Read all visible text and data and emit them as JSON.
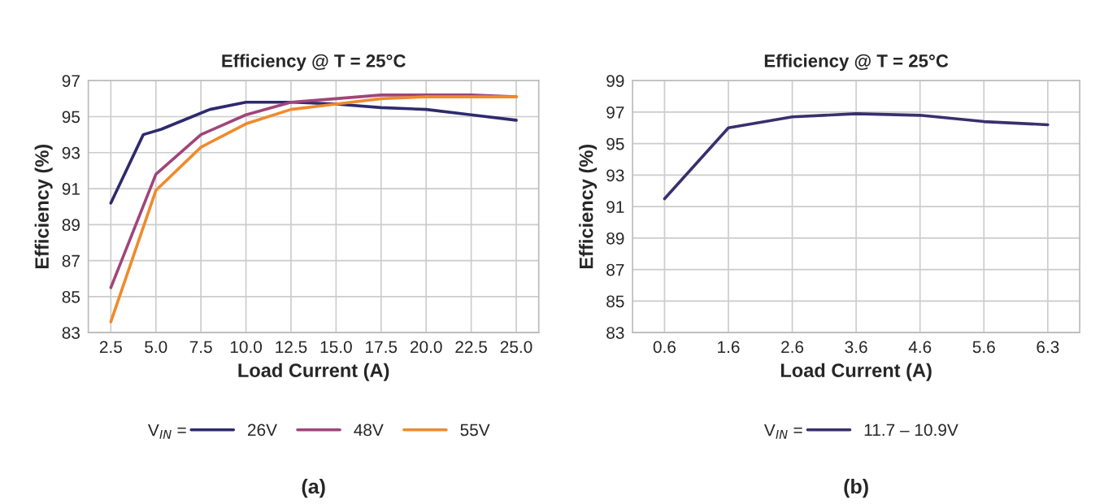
{
  "chart_data": [
    {
      "type": "line",
      "title": "Efficiency @ T = 25°C",
      "xlabel": "Load Current (A)",
      "ylabel": "Efficiency (%)",
      "legend_title": "V$_{IN}$ =",
      "xlim": [
        1.25,
        26.25
      ],
      "xticks": [
        {
          "value": 2.5,
          "label": "2.5"
        },
        {
          "value": 5,
          "label": "5.0"
        },
        {
          "value": 7.5,
          "label": "7.5"
        },
        {
          "value": 10,
          "label": "10.0"
        },
        {
          "value": 12.5,
          "label": "12.5"
        },
        {
          "value": 15,
          "label": "15.0"
        },
        {
          "value": 17.5,
          "label": "17.5"
        },
        {
          "value": 20,
          "label": "20.0"
        },
        {
          "value": 22.5,
          "label": "22.5"
        },
        {
          "value": 25,
          "label": "25.0"
        }
      ],
      "ylim": [
        83,
        97
      ],
      "yticks": [
        83,
        85,
        87,
        89,
        91,
        93,
        95,
        97
      ],
      "grid": true,
      "legend": "bottom",
      "marker": "none",
      "line_style": "solid",
      "series": [
        {
          "name": "26V",
          "color": "#2e2a6e",
          "x": [
            2.5,
            4.3,
            5.3,
            8.0,
            10,
            12.6,
            15,
            17.5,
            20,
            22.5,
            25
          ],
          "values": [
            90.2,
            94.0,
            94.3,
            95.4,
            95.8,
            95.8,
            95.7,
            95.5,
            95.4,
            95.1,
            94.8
          ]
        },
        {
          "name": "48V",
          "color": "#a0457a",
          "x": [
            2.5,
            5,
            7.5,
            10,
            12.5,
            15,
            17.5,
            20,
            22.5,
            25
          ],
          "values": [
            85.5,
            91.8,
            94.0,
            95.1,
            95.8,
            96.0,
            96.2,
            96.2,
            96.2,
            96.1
          ]
        },
        {
          "name": "55V",
          "color": "#f08a2c",
          "x": [
            2.5,
            5,
            7.5,
            10,
            12.5,
            15,
            17.5,
            20,
            22.5,
            25
          ],
          "values": [
            83.6,
            90.9,
            93.3,
            94.6,
            95.4,
            95.7,
            96.0,
            96.1,
            96.1,
            96.1
          ]
        }
      ],
      "annotations": [
        "(a)"
      ]
    },
    {
      "type": "line",
      "title": "Efficiency @ T = 25°C",
      "xlabel": "Load Current (A)",
      "ylabel": "Efficiency (%)",
      "legend_title": "V$_{IN}$ =",
      "categories": [
        "0.6",
        "1.6",
        "2.6",
        "3.6",
        "4.6",
        "5.6",
        "6.3"
      ],
      "ylim": [
        83,
        99
      ],
      "yticks": [
        83,
        85,
        87,
        89,
        91,
        93,
        95,
        97,
        99
      ],
      "grid": true,
      "legend": "bottom",
      "marker": "none",
      "line_style": "solid",
      "series": [
        {
          "name": "11.7 – 10.9V",
          "color": "#3a2f6e",
          "values": [
            91.5,
            96.0,
            96.7,
            96.9,
            96.8,
            96.4,
            96.2
          ]
        }
      ],
      "annotations": [
        "(b)"
      ]
    }
  ]
}
